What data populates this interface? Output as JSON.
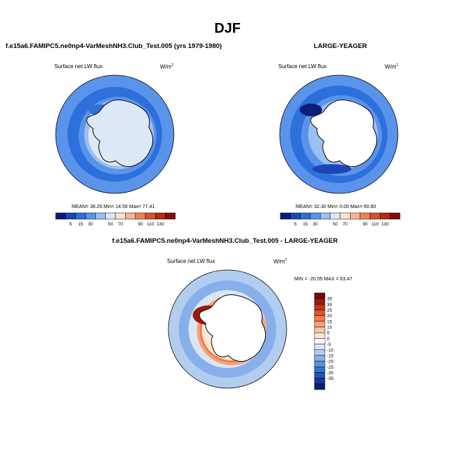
{
  "page": {
    "title": "DJF"
  },
  "panels": [
    {
      "id": "test",
      "title": "f.e15a6.FAMIPC5.ne0np4-VarMeshNH3.Club_Test.005 (yrs 1979-1980)",
      "variable": "Surface net LW flux",
      "units": "W/m",
      "units_exp": "2",
      "stats_text": "MEAN=  38.29  Min=  14.56  Max=  77.41"
    },
    {
      "id": "ref",
      "title": "LARGE-YEAGER",
      "variable": "Surface net LW flux",
      "units": "W/m",
      "units_exp": "2",
      "stats_text": "MEAN=  32.30  Min=   0.00  Max=  60.80"
    },
    {
      "id": "diff",
      "title": "f.e15a6.FAMIPC5.ne0np4-VarMeshNH3.Club_Test.005 - LARGE-YEAGER",
      "variable": "Surface net LW flux",
      "units": "W/m",
      "units_exp": "2",
      "minmax_text": "MIN = -20.55 MAX =  63.47"
    }
  ],
  "chart_data": [
    {
      "type": "heatmap",
      "projection": "south-polar-stereographic",
      "title": "f.e15a6.FAMIPC5.ne0np4-VarMeshNH3.Club_Test.005 (yrs 1979-1980)",
      "variable": "Surface net LW flux",
      "units": "W/m2",
      "stats": {
        "mean": 38.29,
        "min": 14.56,
        "max": 77.41
      },
      "levels": [
        5,
        15,
        30,
        50,
        70,
        90,
        110,
        130
      ],
      "colors": [
        "#0a1d7a",
        "#1d45b8",
        "#2d6fdb",
        "#5a93ea",
        "#9cbff2",
        "#dde8f7",
        "#fde0cc",
        "#f7b490",
        "#ee8256",
        "#d8512c",
        "#b52b15",
        "#850f08"
      ]
    },
    {
      "type": "heatmap",
      "projection": "south-polar-stereographic",
      "title": "LARGE-YEAGER",
      "variable": "Surface net LW flux",
      "units": "W/m2",
      "stats": {
        "mean": 32.3,
        "min": 0.0,
        "max": 60.8
      },
      "levels": [
        5,
        15,
        30,
        50,
        70,
        90,
        110,
        130
      ],
      "colors": [
        "#0a1d7a",
        "#1d45b8",
        "#2d6fdb",
        "#5a93ea",
        "#9cbff2",
        "#dde8f7",
        "#fde0cc",
        "#f7b490",
        "#ee8256",
        "#d8512c",
        "#b52b15",
        "#850f08"
      ]
    },
    {
      "type": "heatmap",
      "projection": "south-polar-stereographic",
      "title": "f.e15a6.FAMIPC5.ne0np4-VarMeshNH3.Club_Test.005 - LARGE-YEAGER",
      "variable": "Surface net LW flux",
      "units": "W/m2",
      "stats": {
        "min": -20.55,
        "max": 63.47
      },
      "levels": [
        35,
        30,
        25,
        20,
        15,
        10,
        5,
        0,
        -5,
        -10,
        -15,
        -20,
        -25,
        -30,
        -35
      ],
      "colors": [
        "#6e0c05",
        "#9a1a0c",
        "#c3341a",
        "#e2522c",
        "#f47a4c",
        "#f9a07b",
        "#fcc6a8",
        "#fde6d6",
        "#ffffff",
        "#d9e6f6",
        "#b1cdf0",
        "#87afea",
        "#5c8fe0",
        "#3a6fd2",
        "#2353b8",
        "#15389a",
        "#0a1d6e"
      ]
    }
  ]
}
